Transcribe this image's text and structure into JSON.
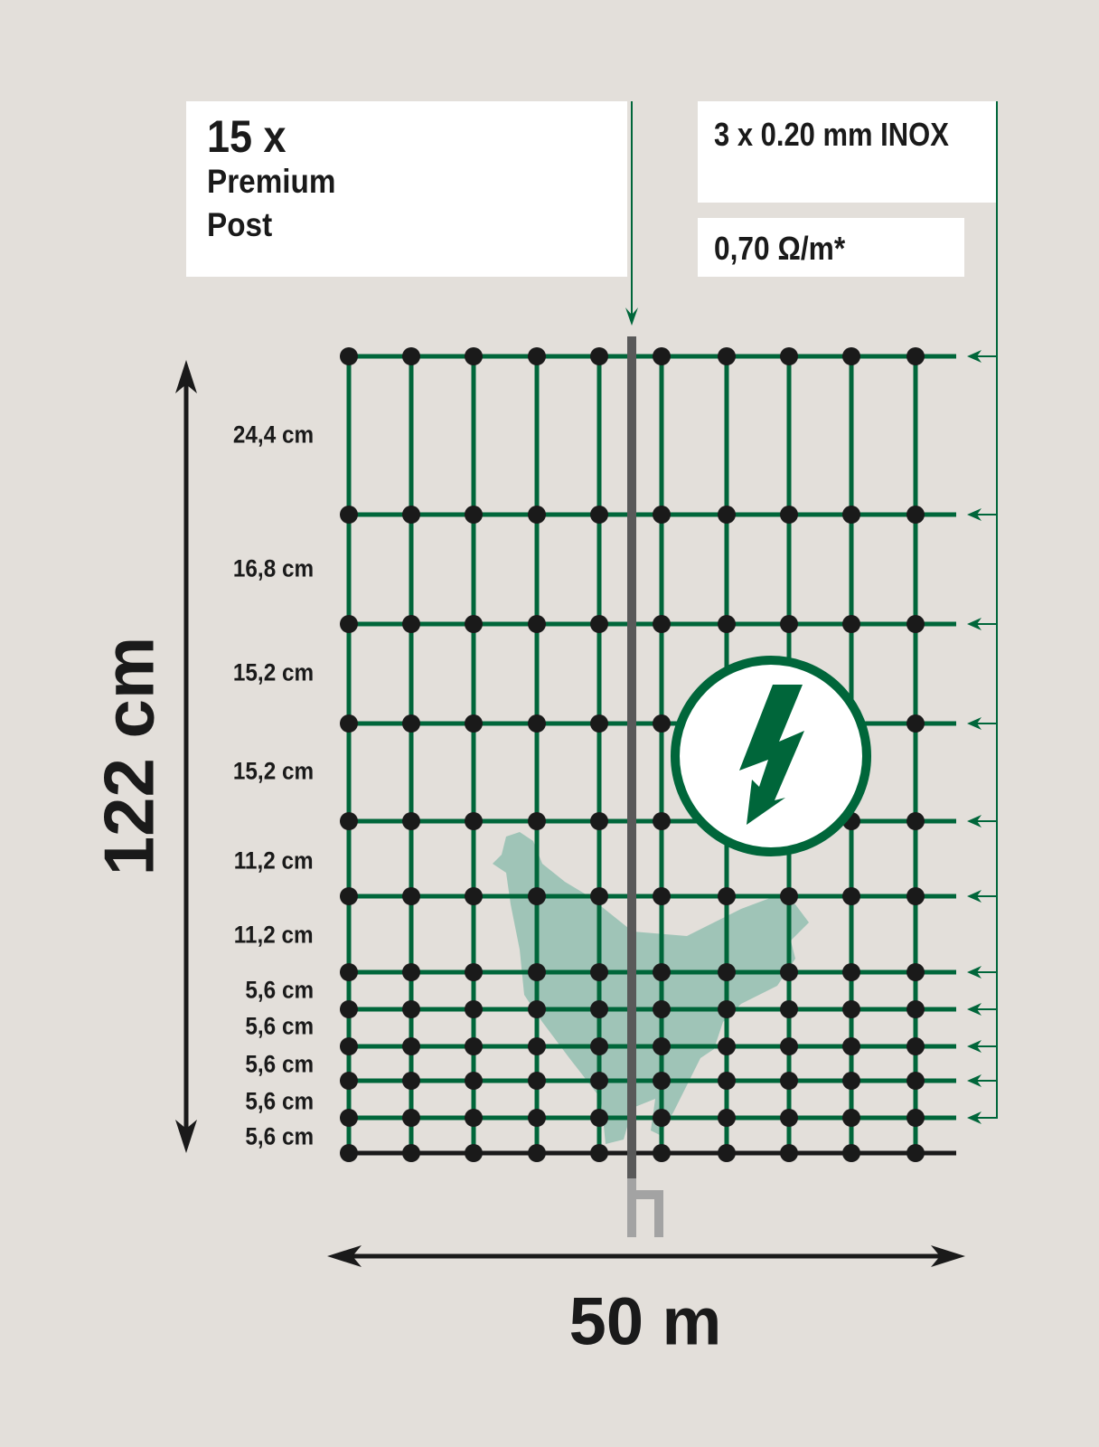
{
  "post_box": {
    "count": "15 x",
    "line1": "Premium",
    "line2": "Post"
  },
  "wire_box": {
    "wire": "3 x 0.20 mm INOX"
  },
  "resistance_box": {
    "resistance": "0,70 Ω/m*"
  },
  "height_label": "122 cm",
  "length_label": "50 m",
  "spacings": [
    "24,4 cm",
    "16,8 cm",
    "15,2 cm",
    "15,2 cm",
    "11,2 cm",
    "11,2 cm",
    "5,6 cm",
    "5,6 cm",
    "5,6 cm",
    "5,6 cm",
    "5,6 cm"
  ],
  "icons": [
    "warning-lightning-icon",
    "chicken-silhouette-icon"
  ],
  "colors": {
    "background": "#e3dfda",
    "wire_green": "#00663a",
    "post": "#595959",
    "knot": "#1a1a1a",
    "chicken": "#9fc4b7"
  }
}
